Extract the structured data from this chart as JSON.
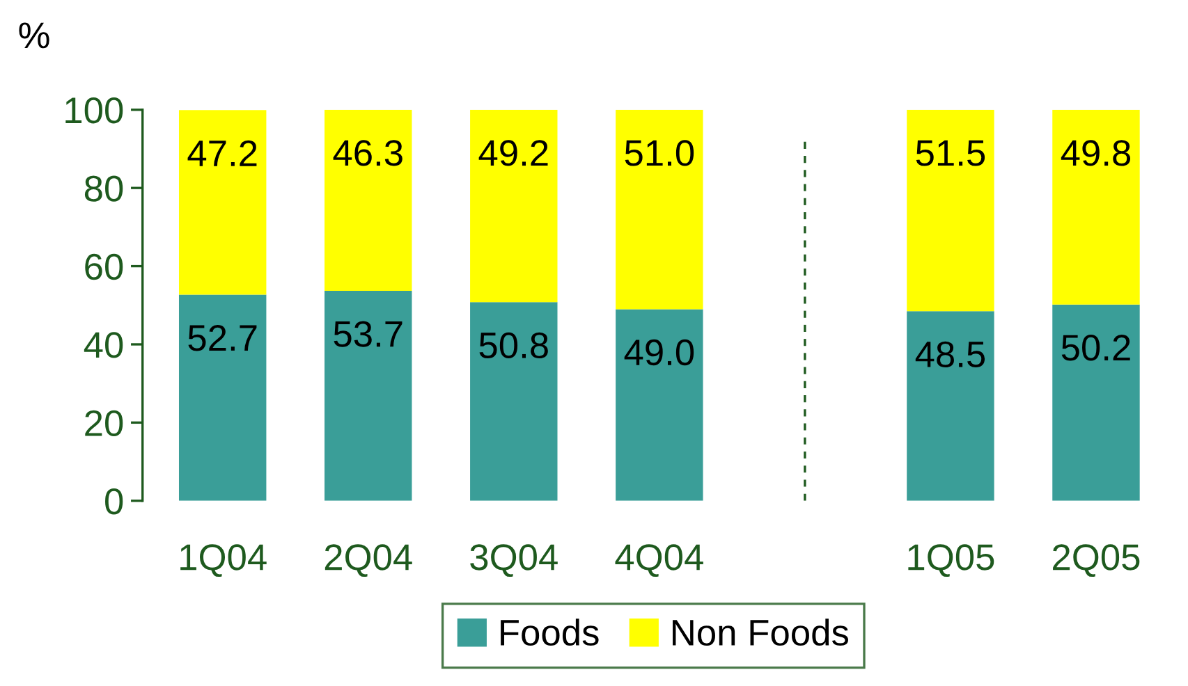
{
  "chart_data": {
    "type": "bar",
    "stacked": true,
    "ylabel": "%",
    "categories": [
      "1Q04",
      "2Q04",
      "3Q04",
      "4Q04",
      null,
      "1Q05",
      "2Q05"
    ],
    "series": [
      {
        "name": "Foods",
        "color": "#3a9e98",
        "values": [
          52.7,
          53.7,
          50.8,
          49.0,
          null,
          48.5,
          50.2
        ],
        "value_labels": [
          "52.7",
          "53.7",
          "50.8",
          "49.0",
          null,
          "48.5",
          "50.2"
        ]
      },
      {
        "name": "Non Foods",
        "color": "#ffff00",
        "values": [
          47.2,
          46.3,
          49.2,
          51.0,
          null,
          51.5,
          49.8
        ],
        "value_labels": [
          "47.2",
          "46.3",
          "49.2",
          "51.0",
          null,
          "51.5",
          "49.8"
        ]
      }
    ],
    "ylim": [
      0,
      100
    ],
    "yticks": [
      0,
      20,
      40,
      60,
      80,
      100
    ],
    "grid": false,
    "legend": "bottom"
  }
}
